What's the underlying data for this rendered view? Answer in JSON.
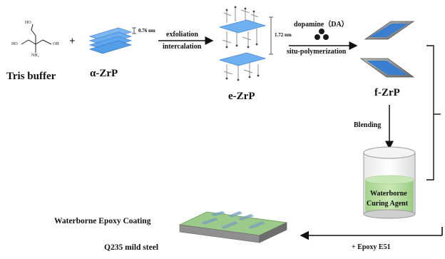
{
  "labels": {
    "tris": "Tris buffer",
    "plus": "+",
    "alpha_zrp": "α-ZrP",
    "thickness_a": "0.76 nm",
    "step1_top": "exfoliation",
    "step1_bottom": "intercalation",
    "thickness_e": "1.72 nm",
    "e_zrp": "e-ZrP",
    "dopamine": "dopamine（DA）",
    "situ": "situ-polymerization",
    "f_zrp": "f-ZrP",
    "blending": "Blending",
    "curing_line1": "Waterborne",
    "curing_line2": "Curing Agent",
    "coating": "Waterborne Epoxy Coating",
    "steel": "Q235 mild steel",
    "epoxy": "+ Epoxy E51"
  },
  "molecule_labels": {
    "ho_top": "HO",
    "ho_left": "HO",
    "oh_right": "OH",
    "nh2": "NH₂"
  },
  "colors": {
    "sheet_blue": "#5fa8ee",
    "sheet_dark": "#3a78c2",
    "liquid_green": "#b6dca0",
    "coating_green": "#9ccc8c",
    "steel_gray": "#8a8a8a"
  }
}
